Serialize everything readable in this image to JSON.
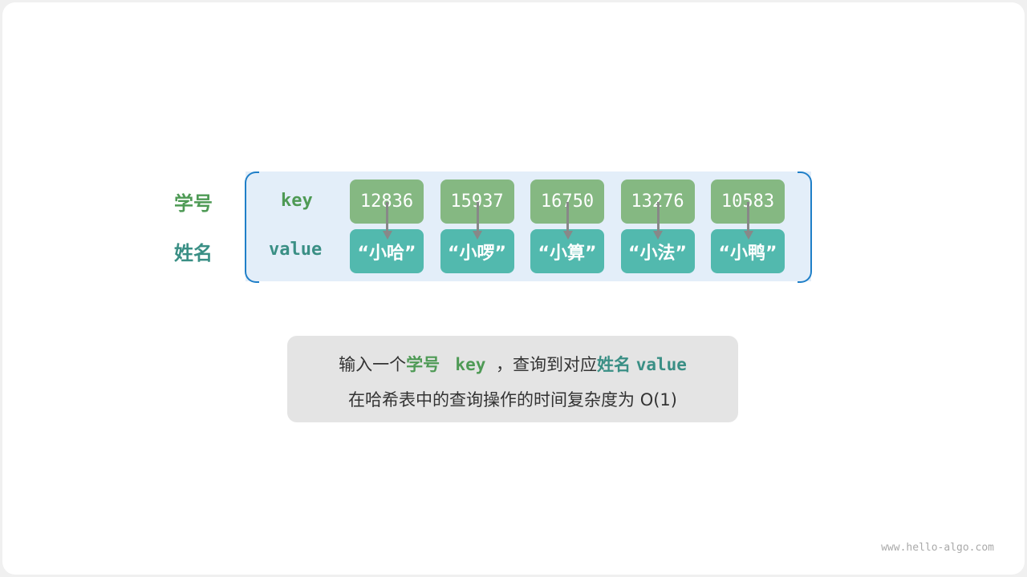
{
  "labels": {
    "student_id": "学号",
    "name": "姓名",
    "key": "key",
    "value": "value"
  },
  "entries": [
    {
      "key": "12836",
      "value": "“小哈”"
    },
    {
      "key": "15937",
      "value": "“小啰”"
    },
    {
      "key": "16750",
      "value": "“小算”"
    },
    {
      "key": "13276",
      "value": "“小法”"
    },
    {
      "key": "10583",
      "value": "“小鸭”"
    }
  ],
  "note": {
    "line1_a": "输入一个",
    "line1_b": "学号",
    "line1_c": "key",
    "line1_d": "，查询到对应",
    "line1_e": "姓名",
    "line1_f": "value",
    "line2": "在哈希表中的查询操作的时间复杂度为 O(1)"
  },
  "footer": "www.hello-algo.com",
  "colors": {
    "key_label": "#4e9a55",
    "value_label": "#3a8f85",
    "key_box": "#85b882",
    "value_box": "#52b9ae",
    "container": "#e3eef9",
    "bracket": "#1f7fc8"
  }
}
